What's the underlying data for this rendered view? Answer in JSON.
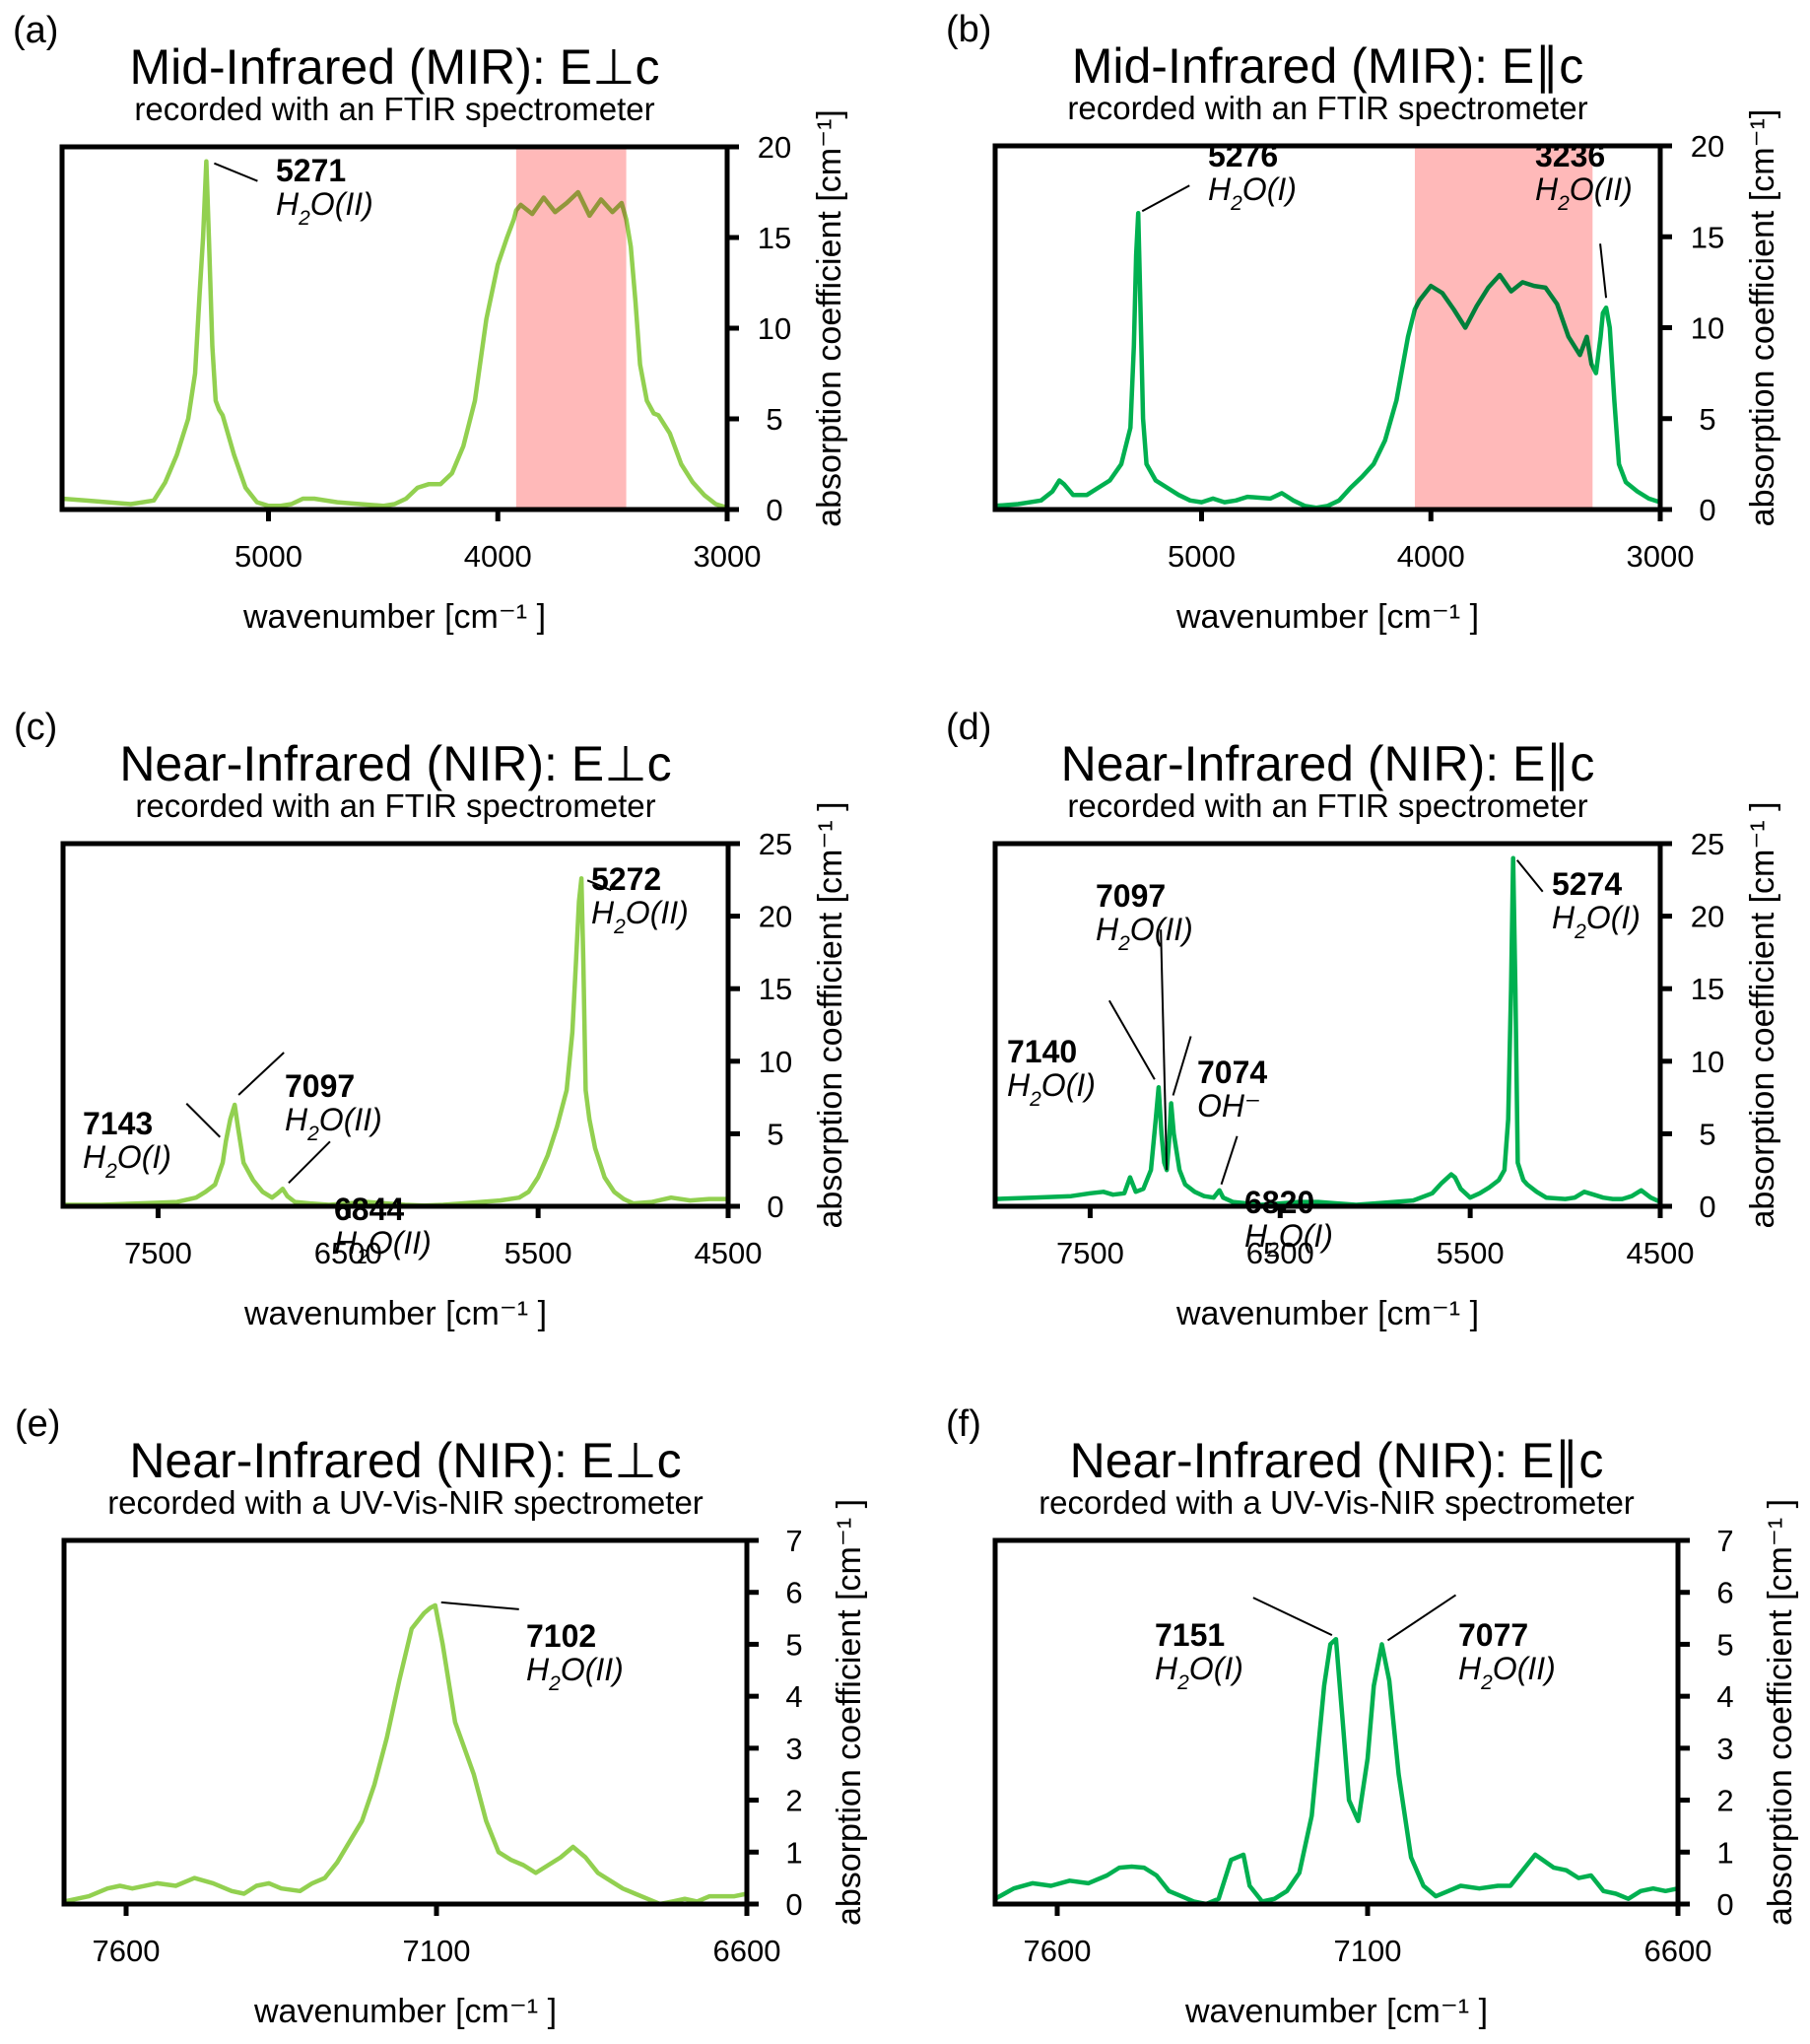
{
  "figure": {
    "colors": {
      "perp": "#92D050",
      "para": "#00B050",
      "band": "#FF8080",
      "text": "#000000"
    }
  },
  "chart_data": [
    {
      "id": "a",
      "type": "line",
      "panel_label": "(a)",
      "title": "Mid-Infrared (MIR): E⊥c",
      "subtitle": "recorded with an FTIR spectrometer",
      "xlabel": "wavenumber [cm⁻¹ ]",
      "ylabel": "absorption coefficient [cm⁻¹]",
      "xlim": [
        5900,
        3000
      ],
      "ylim": [
        0,
        20
      ],
      "xticks": [
        5000,
        4000,
        3000
      ],
      "yticks": [
        0,
        5,
        10,
        15,
        20
      ],
      "color_key": "perp",
      "highlight_band": [
        3920,
        3440
      ],
      "x": [
        5900,
        5800,
        5700,
        5600,
        5500,
        5450,
        5400,
        5350,
        5320,
        5300,
        5285,
        5271,
        5260,
        5245,
        5230,
        5215,
        5200,
        5150,
        5100,
        5050,
        5000,
        4950,
        4900,
        4850,
        4800,
        4700,
        4600,
        4500,
        4450,
        4400,
        4350,
        4300,
        4250,
        4200,
        4150,
        4100,
        4050,
        4000,
        3960,
        3930,
        3920,
        3900,
        3850,
        3800,
        3750,
        3700,
        3650,
        3600,
        3550,
        3500,
        3460,
        3440,
        3420,
        3400,
        3380,
        3350,
        3320,
        3300,
        3250,
        3200,
        3150,
        3100,
        3050,
        3000
      ],
      "y": [
        0.6,
        0.5,
        0.4,
        0.3,
        0.5,
        1.5,
        3.0,
        5.0,
        7.5,
        12,
        15,
        19.2,
        15,
        9,
        6,
        5.5,
        5.2,
        3.0,
        1.2,
        0.4,
        0.2,
        0.2,
        0.3,
        0.6,
        0.6,
        0.4,
        0.3,
        0.2,
        0.3,
        0.6,
        1.2,
        1.4,
        1.4,
        2.0,
        3.5,
        6.0,
        10.5,
        13.5,
        15.0,
        16.0,
        16.5,
        16.8,
        16.3,
        17.2,
        16.4,
        16.9,
        17.5,
        16.2,
        17.1,
        16.4,
        16.9,
        16.0,
        14.5,
        11.5,
        8.0,
        6.0,
        5.3,
        5.2,
        4.2,
        2.5,
        1.5,
        0.8,
        0.3,
        0.1
      ],
      "annotations": [
        {
          "number": "5271",
          "label": "H2O(II)",
          "x": 5271,
          "y": 19.2
        }
      ]
    },
    {
      "id": "b",
      "type": "line",
      "panel_label": "(b)",
      "title": "Mid-Infrared (MIR): E∥c",
      "subtitle": "recorded with an FTIR spectrometer",
      "xlabel": "wavenumber [cm⁻¹ ]",
      "ylabel": "absorption coefficient [cm⁻¹]",
      "xlim": [
        5900,
        3000
      ],
      "ylim": [
        0,
        20
      ],
      "xticks": [
        5000,
        4000,
        3000
      ],
      "yticks": [
        0,
        5,
        10,
        15,
        20
      ],
      "color_key": "para",
      "highlight_band": [
        4070,
        3295
      ],
      "x": [
        5900,
        5800,
        5700,
        5650,
        5620,
        5600,
        5560,
        5500,
        5450,
        5400,
        5350,
        5310,
        5295,
        5285,
        5276,
        5268,
        5255,
        5240,
        5200,
        5150,
        5100,
        5050,
        5000,
        4950,
        4900,
        4850,
        4800,
        4700,
        4650,
        4600,
        4550,
        4500,
        4450,
        4400,
        4350,
        4300,
        4250,
        4200,
        4150,
        4100,
        4070,
        4050,
        4000,
        3950,
        3900,
        3850,
        3800,
        3750,
        3700,
        3650,
        3600,
        3550,
        3500,
        3450,
        3400,
        3350,
        3320,
        3300,
        3280,
        3260,
        3250,
        3236,
        3220,
        3200,
        3180,
        3150,
        3100,
        3050,
        3000
      ],
      "y": [
        0.2,
        0.3,
        0.5,
        1.0,
        1.6,
        1.4,
        0.8,
        0.8,
        1.2,
        1.6,
        2.5,
        4.5,
        9,
        14,
        16.3,
        12,
        5,
        2.5,
        1.6,
        1.2,
        0.8,
        0.5,
        0.4,
        0.6,
        0.4,
        0.5,
        0.7,
        0.6,
        0.9,
        0.5,
        0.2,
        0.1,
        0.2,
        0.5,
        1.2,
        1.8,
        2.5,
        3.8,
        6.0,
        9.5,
        11.0,
        11.5,
        12.3,
        11.9,
        11.0,
        10.0,
        11.2,
        12.2,
        12.9,
        12.0,
        12.5,
        12.3,
        12.2,
        11.3,
        9.5,
        8.5,
        9.5,
        8.0,
        7.5,
        9.5,
        10.8,
        11.1,
        10.0,
        6.0,
        2.5,
        1.5,
        1.0,
        0.6,
        0.4
      ],
      "annotations": [
        {
          "number": "5276",
          "label": "H2O(I)",
          "x": 5276,
          "y": 16.3
        },
        {
          "number": "3236",
          "label": "H2O(II)",
          "x": 3236,
          "y": 11.1
        }
      ]
    },
    {
      "id": "c",
      "type": "line",
      "panel_label": "(c)",
      "title": "Near-Infrared (NIR): E⊥c",
      "subtitle": "recorded with an FTIR spectrometer",
      "xlabel": "wavenumber [cm⁻¹ ]",
      "ylabel": "absorption coefficient [cm⁻¹ ]",
      "xlim": [
        8000,
        4500
      ],
      "ylim": [
        0,
        25
      ],
      "xticks": [
        7500,
        6500,
        5500,
        4500
      ],
      "yticks": [
        0,
        5,
        10,
        15,
        20,
        25
      ],
      "color_key": "perp",
      "highlight_band": null,
      "x": [
        8000,
        7800,
        7600,
        7400,
        7300,
        7250,
        7200,
        7160,
        7143,
        7120,
        7097,
        7080,
        7050,
        7000,
        6950,
        6900,
        6870,
        6844,
        6820,
        6780,
        6700,
        6600,
        6500,
        6400,
        6300,
        6200,
        6100,
        6000,
        5900,
        5800,
        5700,
        5600,
        5550,
        5500,
        5450,
        5400,
        5350,
        5320,
        5300,
        5285,
        5272,
        5262,
        5250,
        5230,
        5200,
        5150,
        5100,
        5050,
        5000,
        4900,
        4800,
        4700,
        4600,
        4500
      ],
      "y": [
        0.1,
        0.1,
        0.2,
        0.3,
        0.6,
        1.0,
        1.5,
        3.0,
        4.5,
        6.0,
        7.0,
        5.5,
        3.0,
        1.8,
        1.0,
        0.6,
        0.9,
        1.2,
        0.7,
        0.3,
        0.2,
        0.1,
        0.2,
        0.3,
        0.2,
        0.1,
        0.05,
        0.1,
        0.2,
        0.3,
        0.4,
        0.6,
        1.0,
        2.0,
        3.5,
        5.5,
        8.0,
        12.0,
        17.0,
        21.0,
        22.6,
        17.0,
        8.0,
        6.0,
        4.0,
        2.0,
        1.0,
        0.5,
        0.2,
        0.3,
        0.6,
        0.4,
        0.5,
        0.5
      ],
      "annotations": [
        {
          "number": "7143",
          "label": "H2O(I)",
          "x": 7143,
          "y": 4.5
        },
        {
          "number": "7097",
          "label": "H2O(II)",
          "x": 7097,
          "y": 7.0
        },
        {
          "number": "6844",
          "label": "H2O(II)",
          "x": 6844,
          "y": 1.2
        },
        {
          "number": "5272",
          "label": "H2O(II)",
          "x": 5272,
          "y": 22.6
        }
      ]
    },
    {
      "id": "d",
      "type": "line",
      "panel_label": "(d)",
      "title": "Near-Infrared (NIR): E∥c",
      "subtitle": "recorded with an FTIR spectrometer",
      "xlabel": "wavenumber [cm⁻¹ ]",
      "ylabel": "absorption coefficient [cm⁻¹ ]",
      "xlim": [
        8000,
        4500
      ],
      "ylim": [
        0,
        25
      ],
      "xticks": [
        7500,
        6500,
        5500,
        4500
      ],
      "yticks": [
        0,
        5,
        10,
        15,
        20,
        25
      ],
      "color_key": "para",
      "highlight_band": null,
      "x": [
        8000,
        7800,
        7600,
        7500,
        7430,
        7380,
        7320,
        7290,
        7260,
        7220,
        7180,
        7155,
        7140,
        7125,
        7110,
        7097,
        7085,
        7074,
        7060,
        7030,
        7000,
        6950,
        6900,
        6850,
        6820,
        6800,
        6750,
        6600,
        6500,
        6400,
        6300,
        6200,
        6100,
        6000,
        5900,
        5800,
        5700,
        5650,
        5600,
        5580,
        5550,
        5500,
        5450,
        5400,
        5350,
        5320,
        5300,
        5285,
        5274,
        5262,
        5250,
        5220,
        5200,
        5150,
        5100,
        5000,
        4950,
        4900,
        4850,
        4800,
        4750,
        4700,
        4650,
        4600,
        4550,
        4500
      ],
      "y": [
        0.5,
        0.6,
        0.7,
        0.9,
        1.0,
        0.8,
        0.9,
        2.0,
        1.0,
        1.2,
        2.5,
        6.0,
        8.2,
        5.0,
        3.0,
        2.5,
        4.5,
        7.1,
        5.0,
        2.5,
        1.5,
        1.0,
        0.7,
        0.6,
        1.1,
        0.6,
        0.3,
        0.1,
        0.2,
        0.3,
        0.3,
        0.2,
        0.1,
        0.2,
        0.3,
        0.4,
        0.9,
        1.6,
        2.2,
        2.0,
        1.2,
        0.6,
        0.9,
        1.3,
        1.8,
        2.5,
        6.0,
        15.0,
        24.0,
        15.0,
        3.0,
        1.8,
        1.5,
        1.0,
        0.6,
        0.5,
        0.6,
        1.0,
        0.8,
        0.6,
        0.5,
        0.5,
        0.7,
        1.1,
        0.6,
        0.3
      ],
      "annotations": [
        {
          "number": "7097",
          "label": "H2O(II)",
          "x": 7097,
          "y": 2.5
        },
        {
          "number": "7140",
          "label": "H2O(I)",
          "x": 7140,
          "y": 8.2
        },
        {
          "number": "7074",
          "label": "OH⁻",
          "x": 7074,
          "y": 7.1
        },
        {
          "number": "6820",
          "label": "H2O(I)",
          "x": 6820,
          "y": 1.1
        },
        {
          "number": "5274",
          "label": "H2O(I)",
          "x": 5274,
          "y": 24.0
        }
      ]
    },
    {
      "id": "e",
      "type": "line",
      "panel_label": "(e)",
      "title": "Near-Infrared (NIR): E⊥c",
      "subtitle": "recorded with a UV-Vis-NIR spectrometer",
      "xlabel": "wavenumber [cm⁻¹ ]",
      "ylabel": "absorption coefficient [cm⁻¹ ]",
      "xlim": [
        7700,
        6600
      ],
      "ylim": [
        0,
        7
      ],
      "xticks": [
        7600,
        7100,
        6600
      ],
      "yticks": [
        0,
        1,
        2,
        3,
        4,
        5,
        6,
        7
      ],
      "color_key": "perp",
      "highlight_band": null,
      "x": [
        7700,
        7660,
        7630,
        7610,
        7590,
        7550,
        7520,
        7490,
        7460,
        7430,
        7410,
        7390,
        7370,
        7350,
        7320,
        7300,
        7280,
        7260,
        7240,
        7220,
        7200,
        7180,
        7160,
        7140,
        7120,
        7110,
        7102,
        7090,
        7070,
        7040,
        7020,
        7000,
        6980,
        6960,
        6940,
        6920,
        6900,
        6880,
        6860,
        6840,
        6820,
        6800,
        6780,
        6760,
        6740,
        6720,
        6700,
        6680,
        6660,
        6640,
        6620,
        6600
      ],
      "y": [
        0.05,
        0.15,
        0.3,
        0.35,
        0.3,
        0.4,
        0.35,
        0.5,
        0.4,
        0.25,
        0.2,
        0.35,
        0.4,
        0.3,
        0.25,
        0.4,
        0.5,
        0.8,
        1.2,
        1.6,
        2.3,
        3.2,
        4.3,
        5.3,
        5.6,
        5.7,
        5.75,
        5.0,
        3.5,
        2.5,
        1.6,
        1.0,
        0.85,
        0.75,
        0.6,
        0.75,
        0.9,
        1.1,
        0.9,
        0.6,
        0.45,
        0.3,
        0.2,
        0.1,
        0.0,
        0.05,
        0.1,
        0.05,
        0.15,
        0.15,
        0.15,
        0.2
      ],
      "annotations": [
        {
          "number": "7102",
          "label": "H2O(II)",
          "x": 7102,
          "y": 5.75
        }
      ]
    },
    {
      "id": "f",
      "type": "line",
      "panel_label": "(f)",
      "title": "Near-Infrared (NIR): E∥c",
      "subtitle": "recorded with a UV-Vis-NIR spectrometer",
      "xlabel": "wavenumber [cm⁻¹ ]",
      "ylabel": "absorption coefficient [cm⁻¹ ]",
      "xlim": [
        7700,
        6600
      ],
      "ylim": [
        0,
        7
      ],
      "xticks": [
        7600,
        7100,
        6600
      ],
      "yticks": [
        0,
        1,
        2,
        3,
        4,
        5,
        6,
        7
      ],
      "color_key": "para",
      "highlight_band": null,
      "x": [
        7700,
        7670,
        7640,
        7610,
        7580,
        7550,
        7520,
        7500,
        7480,
        7460,
        7440,
        7420,
        7400,
        7380,
        7360,
        7340,
        7320,
        7300,
        7290,
        7270,
        7250,
        7230,
        7210,
        7190,
        7170,
        7160,
        7151,
        7140,
        7130,
        7115,
        7100,
        7090,
        7077,
        7065,
        7050,
        7030,
        7010,
        6990,
        6970,
        6950,
        6920,
        6890,
        6870,
        6850,
        6830,
        6800,
        6780,
        6760,
        6740,
        6720,
        6700,
        6680,
        6660,
        6640,
        6620,
        6600
      ],
      "y": [
        0.1,
        0.3,
        0.4,
        0.35,
        0.45,
        0.4,
        0.55,
        0.7,
        0.72,
        0.7,
        0.55,
        0.25,
        0.15,
        0.05,
        0.0,
        0.1,
        0.85,
        0.95,
        0.35,
        0.05,
        0.1,
        0.25,
        0.6,
        1.7,
        4.2,
        5.0,
        5.1,
        3.5,
        2.0,
        1.6,
        2.8,
        4.2,
        5.0,
        4.3,
        2.5,
        0.9,
        0.35,
        0.15,
        0.25,
        0.35,
        0.3,
        0.35,
        0.35,
        0.65,
        0.95,
        0.7,
        0.65,
        0.5,
        0.55,
        0.25,
        0.2,
        0.1,
        0.25,
        0.3,
        0.25,
        0.3
      ],
      "annotations": [
        {
          "number": "7151",
          "label": "H2O(I)",
          "x": 7151,
          "y": 5.1
        },
        {
          "number": "7077",
          "label": "H2O(II)",
          "x": 7077,
          "y": 5.0
        }
      ]
    }
  ]
}
